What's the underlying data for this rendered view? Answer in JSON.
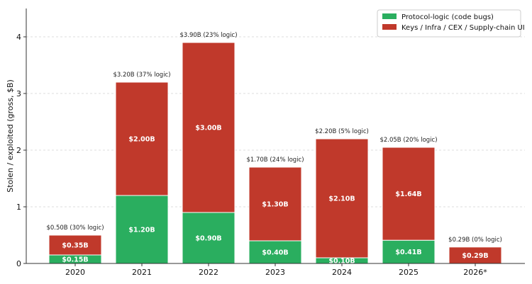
{
  "chart_data": {
    "type": "bar",
    "stacked": true,
    "categories": [
      "2020",
      "2021",
      "2022",
      "2023",
      "2024",
      "2025",
      "2026*"
    ],
    "series": [
      {
        "name": "Protocol-logic (code bugs)",
        "color": "#2aae5f",
        "values": [
          0.15,
          1.2,
          0.9,
          0.4,
          0.1,
          0.41,
          0.0
        ],
        "labels": [
          "$0.15B",
          "$1.20B",
          "$0.90B",
          "$0.40B",
          "$0.10B",
          "$0.41B",
          ""
        ]
      },
      {
        "name": "Keys / Infra / CEX / Supply-chain UI",
        "color": "#c0392b",
        "values": [
          0.35,
          2.0,
          3.0,
          1.3,
          2.1,
          1.64,
          0.29
        ],
        "labels": [
          "$0.35B",
          "$2.00B",
          "$3.00B",
          "$1.30B",
          "$2.10B",
          "$1.64B",
          "$0.29B"
        ]
      }
    ],
    "totals": [
      "$0.50B  (30% logic)",
      "$3.20B  (37% logic)",
      "$3.90B  (23% logic)",
      "$1.70B  (24% logic)",
      "$2.20B  (5% logic)",
      "$2.05B  (20% logic)",
      "$0.29B  (0% logic)"
    ],
    "title": "",
    "xlabel": "",
    "ylabel": "Stolen / exploited (gross, $B)",
    "ylim": [
      0,
      4.5
    ],
    "yticks": [
      0,
      1,
      2,
      3,
      4
    ],
    "grid": "horizontal-dashed",
    "legend_position": "top-right"
  }
}
